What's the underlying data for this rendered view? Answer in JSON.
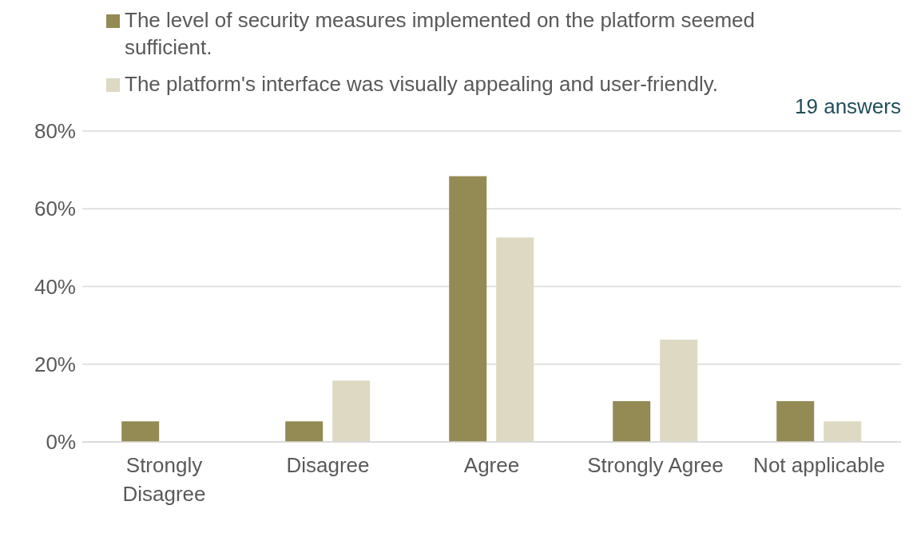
{
  "chart_data": {
    "type": "bar",
    "categories": [
      "Strongly Disagree",
      "Disagree",
      "Agree",
      "Strongly Agree",
      "Not applicable"
    ],
    "series": [
      {
        "name": "The level of security measures implemented on the platform seemed sufficient.",
        "color": "#948a54",
        "values": [
          5.3,
          5.3,
          68.4,
          10.5,
          10.5
        ]
      },
      {
        "name": "The platform's interface was visually appealing and user-friendly.",
        "color": "#ddd9c3",
        "values": [
          0,
          15.8,
          52.6,
          26.3,
          5.3
        ]
      }
    ],
    "ylim": [
      0,
      80
    ],
    "yticks": [
      {
        "value": 0,
        "label": "0%"
      },
      {
        "value": 20,
        "label": "20%"
      },
      {
        "value": 40,
        "label": "40%"
      },
      {
        "value": 60,
        "label": "60%"
      },
      {
        "value": 80,
        "label": "80%"
      }
    ],
    "grid": "y",
    "legend": "top",
    "annotations": [
      "19 answers"
    ]
  }
}
